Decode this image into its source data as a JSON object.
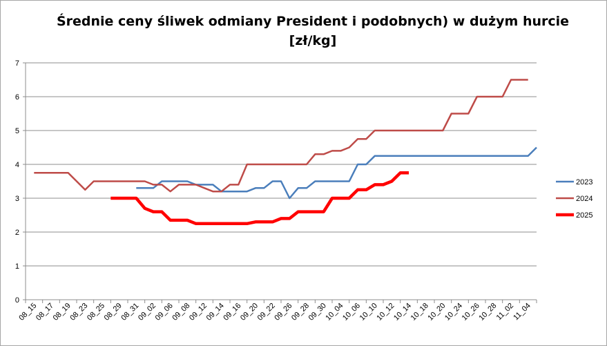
{
  "chart_data": {
    "type": "line",
    "title_lines": [
      "Średnie ceny śliwek odmiany President i podobnych) w dużym hurcie",
      "[zł/kg]"
    ],
    "categories": [
      "08_15",
      "08_17",
      "08_19",
      "08_23",
      "08_25",
      "08_29",
      "08_31",
      "09_02",
      "09_06",
      "09_08",
      "09_12",
      "09_14",
      "09_16",
      "09_20",
      "09_22",
      "09_26",
      "09_28",
      "09_30",
      "10_04",
      "10_06",
      "10_10",
      "10_12",
      "10_14",
      "10_18",
      "10_20",
      "10_24",
      "10_26",
      "10_28",
      "11_02",
      "11_04"
    ],
    "ylim": [
      0,
      7
    ],
    "yticks": [
      0,
      1,
      2,
      3,
      4,
      5,
      6,
      7
    ],
    "grid": true,
    "legend_position": "right",
    "series": [
      {
        "name": "2023",
        "color": "#4a7ebb",
        "width": 2.5,
        "points": [
          [
            6,
            3.3
          ],
          [
            7,
            3.3
          ],
          [
            7.5,
            3.5
          ],
          [
            9,
            3.5
          ],
          [
            9.5,
            3.4
          ],
          [
            10.5,
            3.4
          ],
          [
            11,
            3.2
          ],
          [
            12.5,
            3.2
          ],
          [
            13,
            3.3
          ],
          [
            13.5,
            3.3
          ],
          [
            14,
            3.5
          ],
          [
            14.5,
            3.5
          ],
          [
            15,
            3.0
          ],
          [
            15.5,
            3.3
          ],
          [
            16,
            3.3
          ],
          [
            16.5,
            3.5
          ],
          [
            17,
            3.5
          ],
          [
            18.5,
            3.5
          ],
          [
            19,
            4.0
          ],
          [
            19.5,
            4.0
          ],
          [
            20,
            4.25
          ],
          [
            29,
            4.25
          ],
          [
            29.5,
            4.5
          ]
        ]
      },
      {
        "name": "2024",
        "color": "#be4b48",
        "width": 2.5,
        "points": [
          [
            0,
            3.75
          ],
          [
            2,
            3.75
          ],
          [
            2.5,
            3.5
          ],
          [
            3,
            3.25
          ],
          [
            3.5,
            3.5
          ],
          [
            6.5,
            3.5
          ],
          [
            7,
            3.4
          ],
          [
            7.5,
            3.4
          ],
          [
            8,
            3.2
          ],
          [
            8.5,
            3.4
          ],
          [
            9.5,
            3.4
          ],
          [
            10,
            3.3
          ],
          [
            10.5,
            3.2
          ],
          [
            11,
            3.2
          ],
          [
            11.5,
            3.4
          ],
          [
            12,
            3.4
          ],
          [
            12.5,
            4.0
          ],
          [
            16,
            4.0
          ],
          [
            16.5,
            4.3
          ],
          [
            17,
            4.3
          ],
          [
            17.5,
            4.4
          ],
          [
            18,
            4.4
          ],
          [
            18.5,
            4.5
          ],
          [
            19,
            4.75
          ],
          [
            19.5,
            4.75
          ],
          [
            20,
            5.0
          ],
          [
            24,
            5.0
          ],
          [
            24.5,
            5.5
          ],
          [
            25.5,
            5.5
          ],
          [
            26,
            6.0
          ],
          [
            27.5,
            6.0
          ],
          [
            28,
            6.5
          ],
          [
            29,
            6.5
          ]
        ]
      },
      {
        "name": "2025",
        "color": "#ff0000",
        "width": 4.5,
        "points": [
          [
            4.5,
            3.0
          ],
          [
            6,
            3.0
          ],
          [
            6.5,
            2.7
          ],
          [
            7,
            2.6
          ],
          [
            7.5,
            2.6
          ],
          [
            8,
            2.35
          ],
          [
            9,
            2.35
          ],
          [
            9.5,
            2.25
          ],
          [
            12.5,
            2.25
          ],
          [
            13,
            2.3
          ],
          [
            14,
            2.3
          ],
          [
            14.5,
            2.4
          ],
          [
            15,
            2.4
          ],
          [
            15.5,
            2.6
          ],
          [
            17,
            2.6
          ],
          [
            17.5,
            3.0
          ],
          [
            18.5,
            3.0
          ],
          [
            19,
            3.25
          ],
          [
            19.5,
            3.25
          ],
          [
            20,
            3.4
          ],
          [
            20.5,
            3.4
          ],
          [
            21,
            3.5
          ],
          [
            21.5,
            3.75
          ],
          [
            22,
            3.75
          ]
        ]
      }
    ]
  }
}
